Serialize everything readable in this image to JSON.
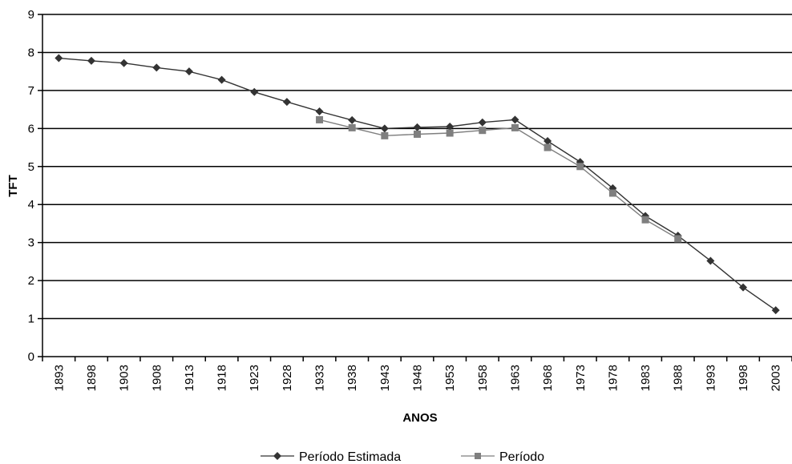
{
  "chart_data": {
    "type": "line",
    "title": "",
    "xlabel": "ANOS",
    "ylabel": "TFT",
    "ylim": [
      0,
      9
    ],
    "yticks": [
      "0",
      "1",
      "2",
      "3",
      "4",
      "5",
      "6",
      "7",
      "8",
      "9"
    ],
    "categories": [
      "1893",
      "1898",
      "1903",
      "1908",
      "1913",
      "1918",
      "1923",
      "1928",
      "1933",
      "1938",
      "1943",
      "1948",
      "1953",
      "1958",
      "1963",
      "1968",
      "1973",
      "1978",
      "1983",
      "1988",
      "1993",
      "1998",
      "2003"
    ],
    "grid": true,
    "legend_position": "bottom",
    "series": [
      {
        "name": "Período Estimada",
        "color": "#333333",
        "marker": "diamond",
        "values": [
          7.85,
          7.78,
          7.72,
          7.6,
          7.5,
          7.28,
          6.96,
          6.7,
          6.45,
          6.22,
          6.0,
          6.03,
          6.05,
          6.16,
          6.23,
          5.67,
          5.12,
          4.43,
          3.7,
          3.18,
          2.52,
          1.82,
          1.22
        ]
      },
      {
        "name": "Período",
        "color": "#7f7f7f",
        "marker": "square",
        "values": [
          null,
          null,
          null,
          null,
          null,
          null,
          null,
          null,
          6.23,
          6.02,
          5.81,
          5.85,
          5.88,
          5.95,
          6.02,
          5.5,
          5.0,
          4.3,
          3.6,
          3.1,
          null,
          null,
          null
        ]
      }
    ]
  }
}
